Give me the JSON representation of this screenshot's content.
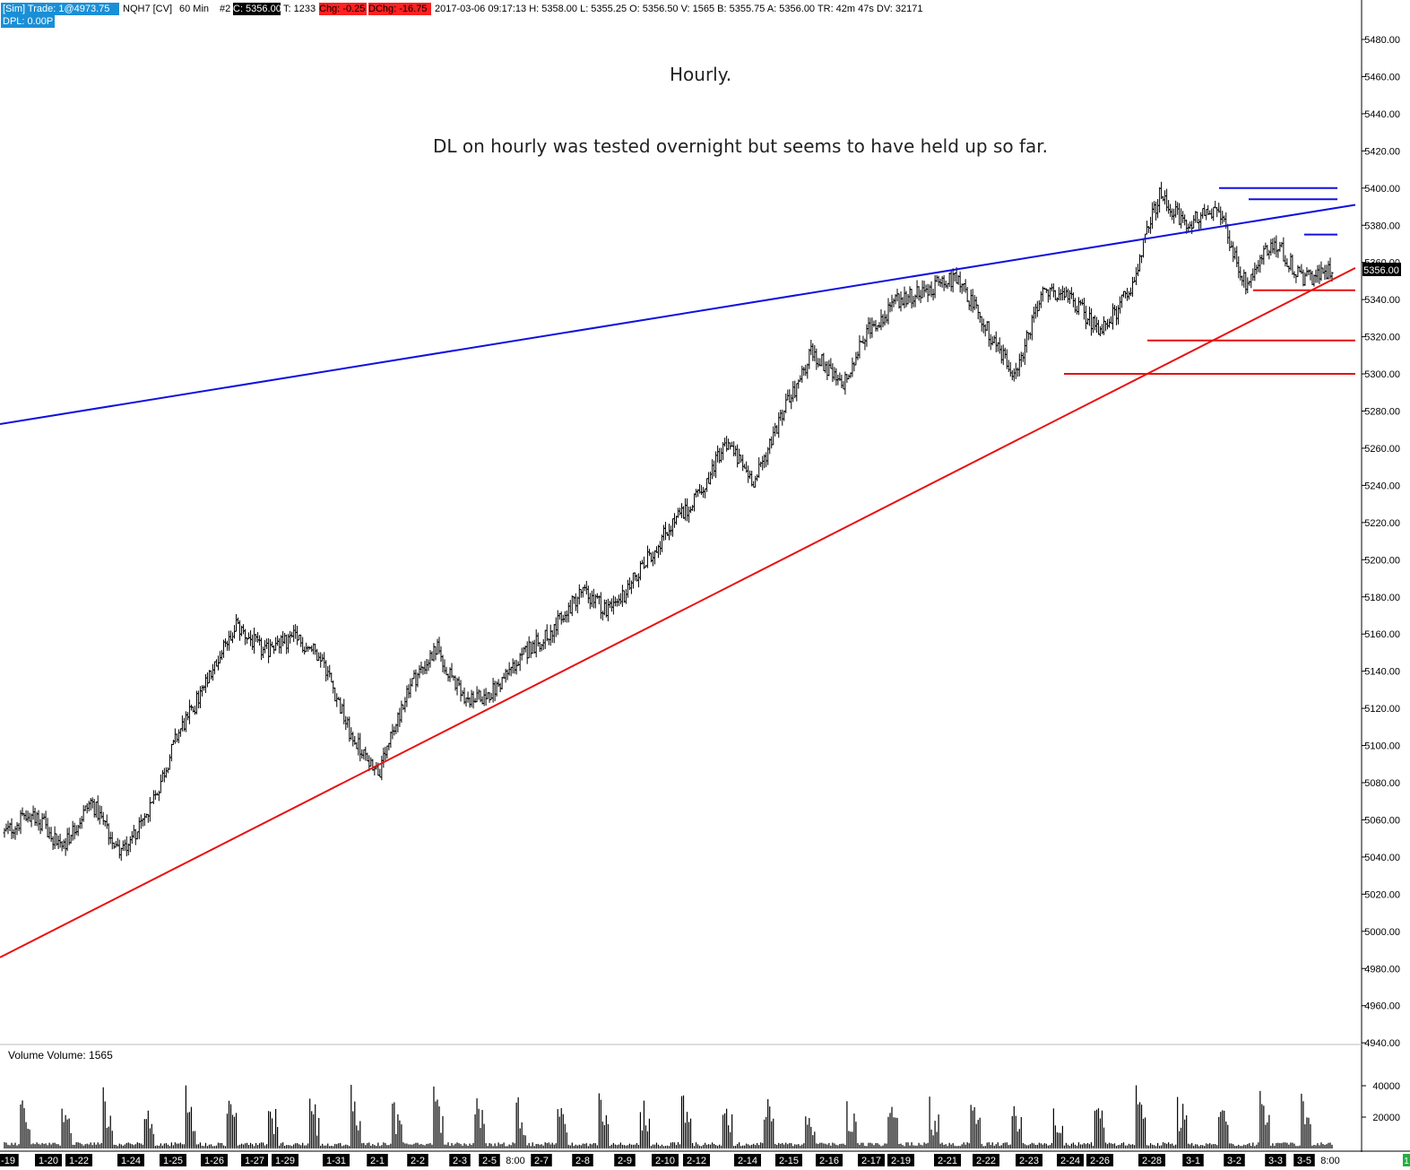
{
  "header": {
    "sim_tag": "[Sim]",
    "trade_label": "Trade: 1@4973.75",
    "symbol": "NQH7 [CV]",
    "interval": "60 Min",
    "count_tag": "#2",
    "close_tag": "C: 5356.00",
    "ticks": "T: 1233",
    "change_tag": "Chg: -0.25",
    "dchange_tag": "DChg: -16.75",
    "stats": "2017-03-06 09:17:13 H: 5358.00 L: 5355.25 O: 5356.50 V: 1565 B: 5355.75 A: 5356.00 TR: 42m 47s DV: 32171",
    "dpl_tag": "DPL: 0.00P"
  },
  "annotations": {
    "title": "Hourly.",
    "comment": "DL on hourly was tested overnight but seems to have held up so far."
  },
  "price_axis": {
    "ticks": [
      "5480.00",
      "5460.00",
      "5440.00",
      "5420.00",
      "5400.00",
      "5380.00",
      "5360.00",
      "5340.00",
      "5320.00",
      "5300.00",
      "5280.00",
      "5260.00",
      "5240.00",
      "5220.00",
      "5200.00",
      "5180.00",
      "5160.00",
      "5140.00",
      "5120.00",
      "5100.00",
      "5080.00",
      "5060.00",
      "5040.00",
      "5020.00",
      "5000.00",
      "4980.00",
      "4960.00",
      "4940.00"
    ],
    "current_price_tag": "5356.00"
  },
  "volume_panel": {
    "label": "Volume  Volume: 1565",
    "ticks": [
      "40000",
      "20000"
    ]
  },
  "date_axis": {
    "labels": [
      "-19",
      "1-20",
      "1-22",
      "1-24",
      "1-25",
      "1-26",
      "1-27",
      "1-29",
      "1-31",
      "2-1",
      "2-2",
      "2-3",
      "2-5",
      "8:00",
      "2-7",
      "2-8",
      "2-9",
      "2-10",
      "2-12",
      "2-14",
      "2-15",
      "2-16",
      "2-17",
      "2-19",
      "2-21",
      "2-22",
      "2-23",
      "2-24",
      "2-26",
      "2-28",
      "3-1",
      "3-2",
      "3-3",
      "3-5",
      "8:00"
    ],
    "highlighted": [
      true,
      true,
      true,
      true,
      true,
      true,
      true,
      true,
      true,
      true,
      true,
      true,
      true,
      false,
      true,
      true,
      true,
      true,
      true,
      true,
      true,
      true,
      true,
      true,
      true,
      true,
      true,
      true,
      true,
      true,
      true,
      true,
      true,
      true,
      false
    ],
    "corner_tag": "1"
  },
  "colors": {
    "trendline": "#1010e0",
    "support": "#e81010",
    "bars": "#000000",
    "sim_tag_bg": "#1a8fd6",
    "neg_tag_bg": "#ff2020",
    "dark_tag_bg": "#000000",
    "date_tag_bg": "#000000"
  },
  "chart_data": {
    "type": "ohlc",
    "symbol": "NQH7",
    "interval": "60 Min",
    "y_range": [
      4930,
      5495
    ],
    "x_range_dates": [
      "2017-01-19",
      "2017-03-06"
    ],
    "price_path": [
      {
        "t": "2017-01-19",
        "p": 5053
      },
      {
        "t": "2017-01-20",
        "p": 5064
      },
      {
        "t": "2017-01-20",
        "p": 5045
      },
      {
        "t": "2017-01-22",
        "p": 5070
      },
      {
        "t": "2017-01-22",
        "p": 5043
      },
      {
        "t": "2017-01-24",
        "p": 5063
      },
      {
        "t": "2017-01-24",
        "p": 5106
      },
      {
        "t": "2017-01-25",
        "p": 5133
      },
      {
        "t": "2017-01-26",
        "p": 5165
      },
      {
        "t": "2017-01-26",
        "p": 5150
      },
      {
        "t": "2017-01-27",
        "p": 5158
      },
      {
        "t": "2017-01-29",
        "p": 5148
      },
      {
        "t": "2017-01-31",
        "p": 5105
      },
      {
        "t": "2017-01-31",
        "p": 5085
      },
      {
        "t": "2017-02-01",
        "p": 5132
      },
      {
        "t": "2017-02-01",
        "p": 5152
      },
      {
        "t": "2017-02-02",
        "p": 5122
      },
      {
        "t": "2017-02-03",
        "p": 5130
      },
      {
        "t": "2017-02-05",
        "p": 5150
      },
      {
        "t": "2017-02-07",
        "p": 5162
      },
      {
        "t": "2017-02-07",
        "p": 5183
      },
      {
        "t": "2017-02-08",
        "p": 5172
      },
      {
        "t": "2017-02-09",
        "p": 5193
      },
      {
        "t": "2017-02-10",
        "p": 5217
      },
      {
        "t": "2017-02-12",
        "p": 5234
      },
      {
        "t": "2017-02-14",
        "p": 5262
      },
      {
        "t": "2017-02-14",
        "p": 5242
      },
      {
        "t": "2017-02-15",
        "p": 5280
      },
      {
        "t": "2017-02-16",
        "p": 5312
      },
      {
        "t": "2017-02-17",
        "p": 5293
      },
      {
        "t": "2017-02-19",
        "p": 5325
      },
      {
        "t": "2017-02-21",
        "p": 5340
      },
      {
        "t": "2017-02-22",
        "p": 5346
      },
      {
        "t": "2017-02-23",
        "p": 5352
      },
      {
        "t": "2017-02-23",
        "p": 5325
      },
      {
        "t": "2017-02-24",
        "p": 5300
      },
      {
        "t": "2017-02-26",
        "p": 5343
      },
      {
        "t": "2017-02-28",
        "p": 5340
      },
      {
        "t": "2017-02-28",
        "p": 5322
      },
      {
        "t": "2017-03-01",
        "p": 5345
      },
      {
        "t": "2017-03-01",
        "p": 5396
      },
      {
        "t": "2017-03-02",
        "p": 5380
      },
      {
        "t": "2017-03-02",
        "p": 5390
      },
      {
        "t": "2017-03-03",
        "p": 5348
      },
      {
        "t": "2017-03-03",
        "p": 5372
      },
      {
        "t": "2017-03-05",
        "p": 5350
      },
      {
        "t": "2017-03-06",
        "p": 5356
      }
    ],
    "trendlines": [
      {
        "name": "DL (resistance trendline)",
        "color": "blue",
        "from": {
          "t": "2017-01-19",
          "p": 5273
        },
        "to": {
          "t": "2017-03-06",
          "p": 5391
        }
      },
      {
        "name": "support trendline",
        "color": "red",
        "from": {
          "t": "2017-01-19",
          "p": 4986
        },
        "to": {
          "t": "2017-03-06",
          "p": 5357
        }
      }
    ],
    "horizontal_levels": [
      {
        "color": "blue",
        "price": 5400
      },
      {
        "color": "blue",
        "price": 5394
      },
      {
        "color": "blue",
        "price": 5375
      },
      {
        "color": "red",
        "price": 5345
      },
      {
        "color": "red",
        "price": 5318
      },
      {
        "color": "red",
        "price": 5300
      }
    ],
    "volume": {
      "max_visible": 43000,
      "last": 1565
    }
  }
}
